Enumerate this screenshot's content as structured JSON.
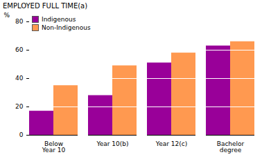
{
  "chart_data": {
    "type": "bar",
    "title": "EMPLOYED FULL TIME(a)",
    "y_label": "%",
    "categories": [
      "Below Year 10",
      "Year 10(b)",
      "Year 12(c)",
      "Bachelor degree"
    ],
    "series": [
      {
        "name": "Indigenous",
        "color": "#990099",
        "values": [
          17,
          28,
          51,
          63
        ]
      },
      {
        "name": "Non-Indigenous",
        "color": "#ff9950",
        "values": [
          35,
          49,
          58,
          66
        ]
      }
    ],
    "ylim": [
      0,
      80
    ],
    "yticks": [
      0,
      20,
      40,
      60,
      80
    ],
    "grid": true,
    "legend": "top-left"
  }
}
